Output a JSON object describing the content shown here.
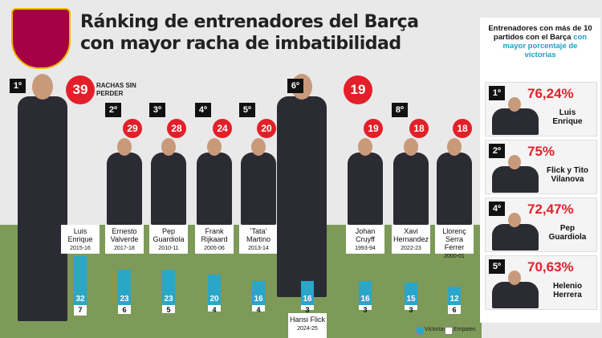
{
  "header": {
    "title_lines": [
      "Ránking de entrenadores del Barça",
      "con mayor racha de imbatibilidad"
    ]
  },
  "chart_data": {
    "type": "bar",
    "stacked": true,
    "streak_label": "RACHAS SIN PERDER",
    "categories": [
      "Luis Enrique",
      "Ernesto Valverde",
      "Pep Guardiola",
      "Frank Rijkaard",
      "'Tata' Martino",
      "Hansi Flick",
      "Johan Cruyff",
      "Xavi Hernandez",
      "Llorenç Serra Ferrer"
    ],
    "seasons": [
      "2015-16",
      "2017-18",
      "2010-11",
      "2005-06",
      "2013-14",
      "2024-25",
      "1993-94",
      "2022-23",
      "2000-01"
    ],
    "ranks": [
      "1º",
      "2º",
      "3º",
      "4º",
      "5º",
      "6º",
      null,
      "8º",
      null
    ],
    "streaks": [
      39,
      29,
      28,
      24,
      20,
      19,
      19,
      18,
      18
    ],
    "series": [
      {
        "name": "Victorias",
        "color": "#2aa6c9",
        "values": [
          32,
          23,
          23,
          20,
          16,
          16,
          16,
          15,
          12
        ]
      },
      {
        "name": "Empates",
        "color": "#ffffff",
        "values": [
          7,
          6,
          5,
          4,
          4,
          3,
          3,
          3,
          6
        ]
      }
    ]
  },
  "side_panel": {
    "intro": "Entrenadores con más de 10 partidos con el Barça",
    "intro_highlight": "con mayor porcentaje de victorias",
    "entries": [
      {
        "rank": "1º",
        "percentage": "76,24%",
        "name": "Luis Enrique"
      },
      {
        "rank": "2º",
        "percentage": "75%",
        "name": "Flick y Tito Vilanova"
      },
      {
        "rank": "4º",
        "percentage": "72,47%",
        "name": "Pep Guardiola"
      },
      {
        "rank": "5º",
        "percentage": "70,63%",
        "name": "Helenio Herrera"
      }
    ]
  }
}
